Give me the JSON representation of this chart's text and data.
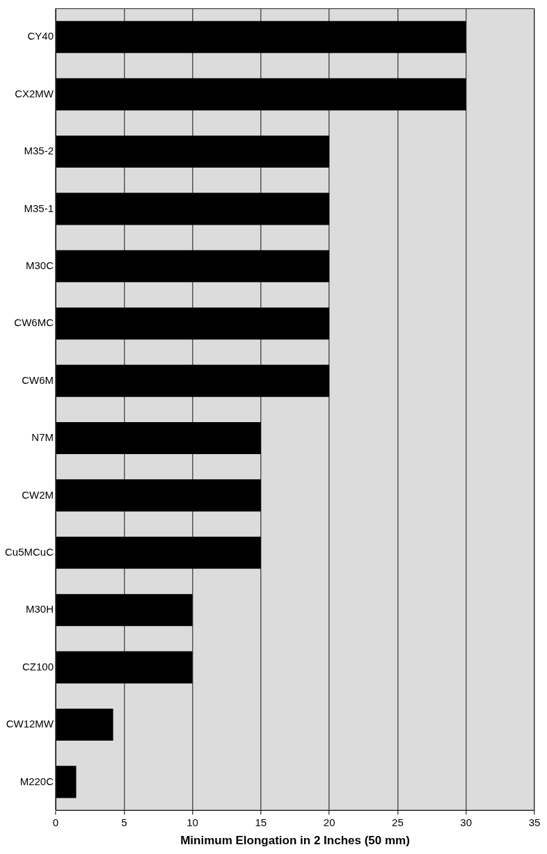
{
  "chart_data": {
    "type": "bar",
    "orientation": "horizontal",
    "xlabel": "Minimum Elongation in 2 Inches (50 mm)",
    "categories": [
      "CY40",
      "CX2MW",
      "M35-2",
      "M35-1",
      "M30C",
      "CW6MC",
      "CW6M",
      "N7M",
      "CW2M",
      "Cu5MCuC",
      "M30H",
      "CZ100",
      "CW12MW",
      "M220C"
    ],
    "values": [
      30,
      30,
      20,
      20,
      20,
      20,
      20,
      15,
      15,
      15,
      10,
      10,
      4.2,
      1.5
    ],
    "color": "#000000",
    "xlim": [
      0,
      35
    ],
    "xticks": [
      0,
      5,
      10,
      15,
      20,
      25,
      30,
      35
    ],
    "grid": "x",
    "legend": false
  }
}
